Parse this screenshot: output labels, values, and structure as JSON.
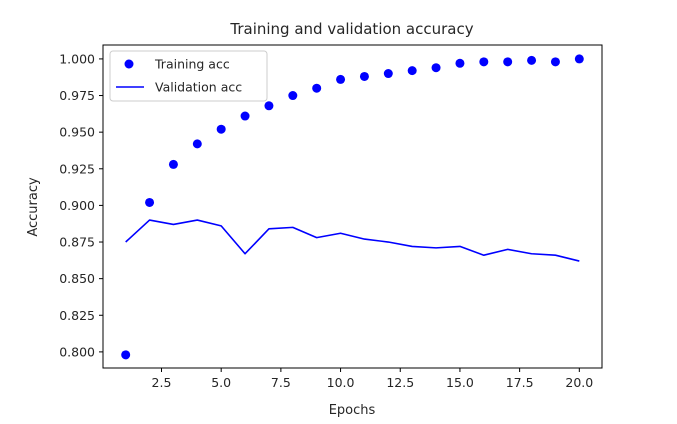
{
  "chart_data": {
    "type": "line",
    "title": "Training and validation accuracy",
    "xlabel": "Epochs",
    "ylabel": "Accuracy",
    "xlim": [
      0.05,
      20.95
    ],
    "ylim": [
      0.789,
      1.0095
    ],
    "x": [
      1,
      2,
      3,
      4,
      5,
      6,
      7,
      8,
      9,
      10,
      11,
      12,
      13,
      14,
      15,
      16,
      17,
      18,
      19,
      20
    ],
    "series": [
      {
        "name": "Training acc",
        "style": "points",
        "color": "#0000ff",
        "values": [
          0.798,
          0.902,
          0.928,
          0.942,
          0.952,
          0.961,
          0.968,
          0.975,
          0.98,
          0.986,
          0.988,
          0.99,
          0.992,
          0.994,
          0.997,
          0.998,
          0.998,
          0.999,
          0.998,
          1.0
        ]
      },
      {
        "name": "Validation acc",
        "style": "line",
        "color": "#0000ff",
        "values": [
          0.875,
          0.89,
          0.887,
          0.89,
          0.886,
          0.867,
          0.884,
          0.885,
          0.878,
          0.881,
          0.877,
          0.875,
          0.872,
          0.871,
          0.872,
          0.866,
          0.87,
          0.867,
          0.866,
          0.862
        ]
      }
    ],
    "x_ticks": [
      2.5,
      5.0,
      7.5,
      10.0,
      12.5,
      15.0,
      17.5,
      20.0
    ],
    "x_tick_labels": [
      "2.5",
      "5.0",
      "7.5",
      "10.0",
      "12.5",
      "15.0",
      "17.5",
      "20.0"
    ],
    "y_ticks": [
      0.8,
      0.825,
      0.85,
      0.875,
      0.9,
      0.925,
      0.95,
      0.975,
      1.0
    ],
    "y_tick_labels": [
      "0.800",
      "0.825",
      "0.850",
      "0.875",
      "0.900",
      "0.925",
      "0.950",
      "0.975",
      "1.000"
    ],
    "grid": false,
    "legend_position": "top-left"
  }
}
